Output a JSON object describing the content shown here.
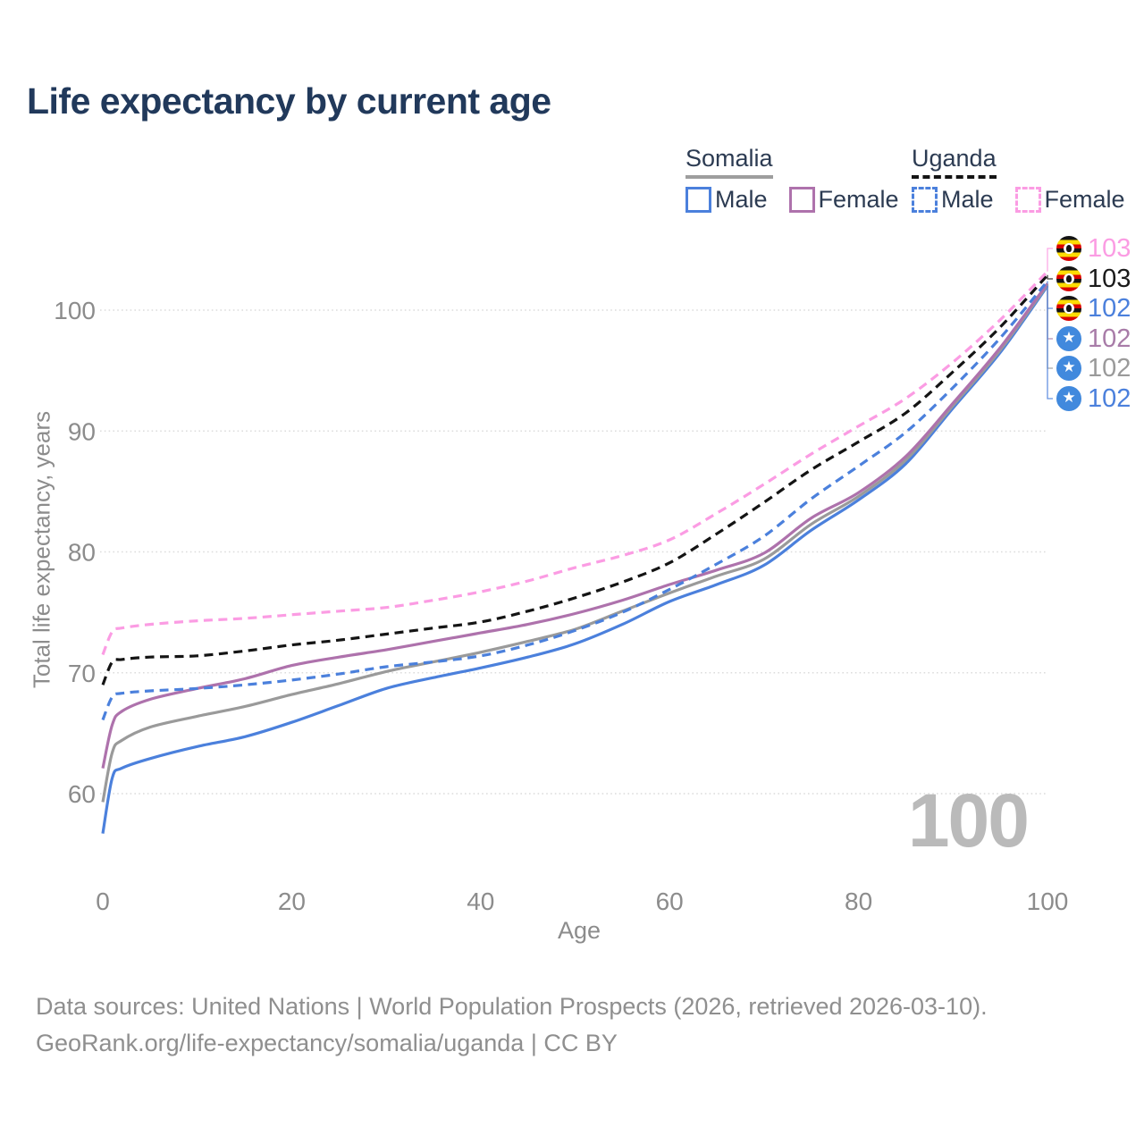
{
  "title": "Life expectancy by current age",
  "legend": {
    "groups": [
      {
        "label": "Somalia",
        "line_style": "solid",
        "underline_color": "#9e9e9e",
        "items": [
          {
            "label": "Male",
            "color": "#4b80dc"
          },
          {
            "label": "Female",
            "color": "#ae72ac"
          }
        ]
      },
      {
        "label": "Uganda",
        "line_style": "dashed",
        "underline_color": "#141414",
        "items": [
          {
            "label": "Male",
            "color": "#4b80dc"
          },
          {
            "label": "Female",
            "color": "#fb9ce3"
          }
        ]
      }
    ]
  },
  "chart_data": {
    "type": "line",
    "title": "Life expectancy by current age",
    "xlabel": "Age",
    "ylabel": "Total life expectancy, years",
    "xticks": [
      0,
      20,
      40,
      60,
      80,
      100
    ],
    "yticks": [
      60,
      70,
      80,
      90,
      100
    ],
    "xlim": [
      0,
      100
    ],
    "ylim": [
      56,
      104
    ],
    "grid": "horizontal-dotted",
    "legend_position": "top-right",
    "x": [
      0,
      1,
      2,
      5,
      10,
      15,
      20,
      25,
      30,
      35,
      40,
      45,
      50,
      55,
      60,
      65,
      70,
      75,
      80,
      85,
      90,
      95,
      100
    ],
    "series": [
      {
        "name": "Somalia Male",
        "country": "Somalia",
        "sex": "Male",
        "color": "#4b80dc",
        "dash": false,
        "values": [
          56.7,
          61.3,
          62.1,
          62.9,
          63.9,
          64.7,
          65.9,
          67.3,
          68.7,
          69.6,
          70.4,
          71.3,
          72.4,
          74.0,
          75.9,
          77.3,
          78.9,
          81.8,
          84.3,
          87.3,
          91.9,
          96.5,
          102.0
        ]
      },
      {
        "name": "Somalia Both sexes",
        "country": "Somalia",
        "sex": "Both",
        "color": "#9a9a9a",
        "dash": false,
        "values": [
          59.3,
          63.4,
          64.4,
          65.5,
          66.4,
          67.2,
          68.2,
          69.1,
          70.1,
          70.9,
          71.7,
          72.6,
          73.6,
          75.1,
          76.6,
          78.0,
          79.4,
          82.3,
          84.6,
          87.6,
          92.1,
          96.7,
          102.1
        ]
      },
      {
        "name": "Somalia Female",
        "country": "Somalia",
        "sex": "Female",
        "color": "#ae72ac",
        "dash": false,
        "values": [
          62.1,
          65.7,
          66.8,
          67.8,
          68.7,
          69.5,
          70.6,
          71.3,
          71.9,
          72.6,
          73.3,
          74.0,
          74.9,
          76.0,
          77.3,
          78.5,
          79.9,
          82.8,
          84.9,
          87.9,
          92.3,
          96.9,
          102.2
        ]
      },
      {
        "name": "Uganda Male",
        "country": "Uganda",
        "sex": "Male",
        "color": "#4b80dc",
        "dash": true,
        "values": [
          66.1,
          68.0,
          68.3,
          68.5,
          68.7,
          69.0,
          69.4,
          69.9,
          70.5,
          70.9,
          71.4,
          72.3,
          73.5,
          75.0,
          76.9,
          79.0,
          81.3,
          84.4,
          87.1,
          89.9,
          93.6,
          97.7,
          102.4
        ]
      },
      {
        "name": "Uganda Both sexes",
        "country": "Uganda",
        "sex": "Both",
        "color": "#141414",
        "dash": true,
        "values": [
          69.0,
          70.9,
          71.1,
          71.3,
          71.4,
          71.8,
          72.3,
          72.7,
          73.2,
          73.7,
          74.2,
          75.1,
          76.2,
          77.5,
          79.1,
          81.5,
          84.1,
          86.8,
          89.1,
          91.5,
          94.9,
          98.6,
          102.9
        ]
      },
      {
        "name": "Uganda Female",
        "country": "Uganda",
        "sex": "Female",
        "color": "#fb9ce3",
        "dash": true,
        "values": [
          71.5,
          73.4,
          73.7,
          74.0,
          74.3,
          74.5,
          74.8,
          75.1,
          75.4,
          76.0,
          76.7,
          77.6,
          78.7,
          79.7,
          81.0,
          83.2,
          85.6,
          88.1,
          90.4,
          92.7,
          95.7,
          99.2,
          103.2
        ]
      }
    ],
    "end_labels": [
      {
        "value": "103",
        "color": "#fb9ce3",
        "flag": "uganda",
        "series": "Uganda Female"
      },
      {
        "value": "103",
        "color": "#1a1a1a",
        "flag": "uganda",
        "series": "Uganda Both sexes"
      },
      {
        "value": "102",
        "color": "#4b80dc",
        "flag": "uganda",
        "series": "Uganda Male"
      },
      {
        "value": "102",
        "color": "#a87ca8",
        "flag": "somalia",
        "series": "Somalia Female"
      },
      {
        "value": "102",
        "color": "#9a9a9a",
        "flag": "somalia",
        "series": "Somalia Both sexes"
      },
      {
        "value": "102",
        "color": "#4b80dc",
        "flag": "somalia",
        "series": "Somalia Male"
      }
    ]
  },
  "watermark_age": "100",
  "footer": {
    "line1": "Data sources: United Nations | World Population Prospects (2026, retrieved 2026-03-10).",
    "line2": "GeoRank.org/life-expectancy/somalia/uganda | CC BY"
  }
}
